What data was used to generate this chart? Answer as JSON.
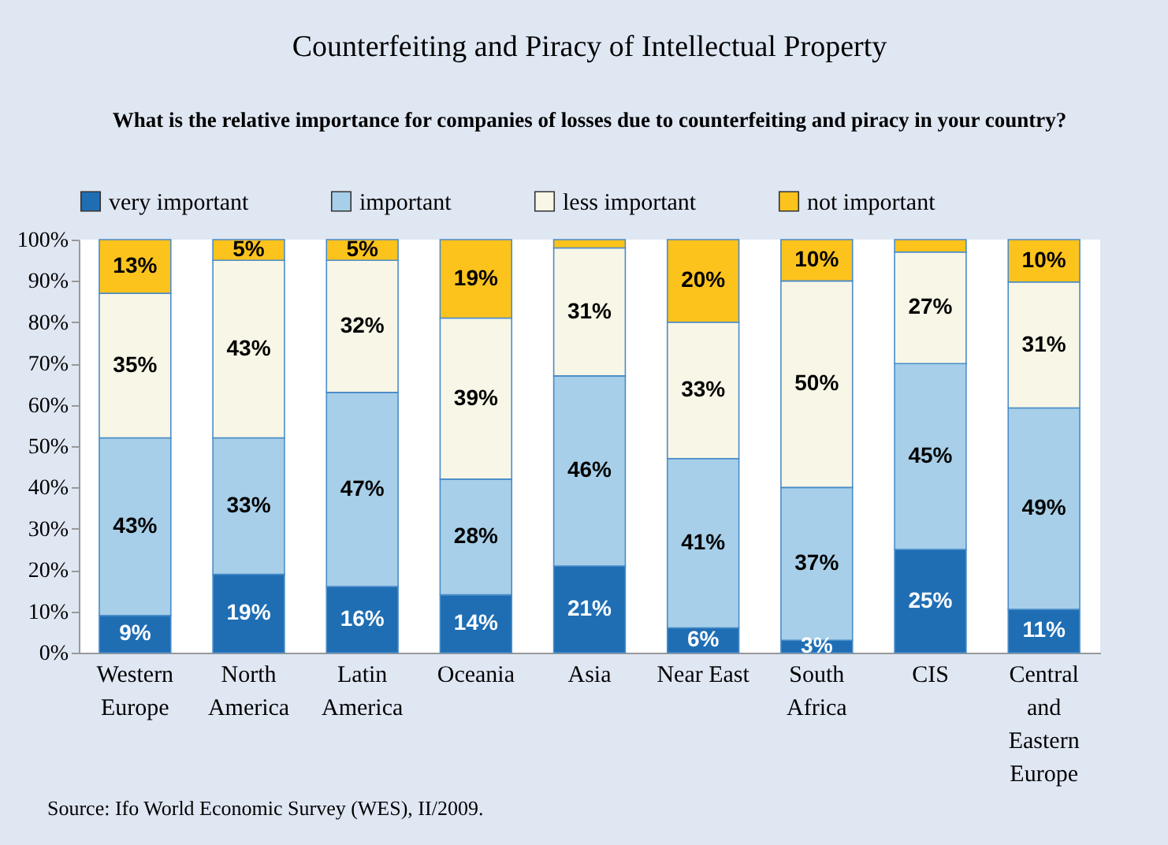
{
  "chart_data": {
    "type": "bar",
    "stacked": true,
    "title": "Counterfeiting and Piracy of Intellectual Property",
    "subtitle": "What is the relative importance for companies of losses due to counterfeiting and piracy in your country?",
    "categories": [
      "Western Europe",
      "North America",
      "Latin America",
      "Oceania",
      "Asia",
      "Near East",
      "South Africa",
      "CIS",
      "Central and Eastern Europe"
    ],
    "series": [
      {
        "name": "very important",
        "color": "#1f6eb4",
        "values": [
          9,
          19,
          16,
          14,
          21,
          6,
          3,
          25,
          10.5
        ],
        "value_labels": [
          "9%",
          "19%",
          "16%",
          "14%",
          "21%",
          "6%",
          "3%",
          "25%",
          "11%"
        ]
      },
      {
        "name": "important",
        "color": "#a7cfe9",
        "values": [
          43,
          33,
          47,
          28,
          46,
          41,
          37,
          45,
          48.75
        ],
        "value_labels": [
          "43%",
          "33%",
          "47%",
          "28%",
          "46%",
          "41%",
          "37%",
          "45%",
          "49%"
        ]
      },
      {
        "name": "less important",
        "color": "#f8f6e6",
        "values": [
          35,
          43,
          32,
          39,
          31,
          33,
          50,
          27,
          30.5
        ],
        "value_labels": [
          "35%",
          "43%",
          "32%",
          "39%",
          "31%",
          "33%",
          "50%",
          "27%",
          "31%"
        ]
      },
      {
        "name": "not important",
        "color": "#fcc31d",
        "values": [
          13,
          5,
          5,
          19,
          2,
          20,
          10,
          3,
          10.25
        ],
        "value_labels": [
          "13%",
          "5%",
          "5%",
          "19%",
          null,
          "20%",
          "10%",
          null,
          "10%"
        ]
      }
    ],
    "ylim": [
      0,
      100
    ],
    "yticks": [
      {
        "value": 0,
        "label": "0%"
      },
      {
        "value": 10,
        "label": "10%"
      },
      {
        "value": 20,
        "label": "20%"
      },
      {
        "value": 30,
        "label": "30%"
      },
      {
        "value": 40,
        "label": "40%"
      },
      {
        "value": 50,
        "label": "50%"
      },
      {
        "value": 60,
        "label": "60%"
      },
      {
        "value": 70,
        "label": "70%"
      },
      {
        "value": 80,
        "label": "80%"
      },
      {
        "value": 90,
        "label": "90%"
      },
      {
        "value": 100,
        "label": "100%"
      }
    ],
    "grid": false,
    "legend": "top",
    "annotations": [
      "Source: Ifo World Economic Survey (WES), II/2009."
    ]
  }
}
